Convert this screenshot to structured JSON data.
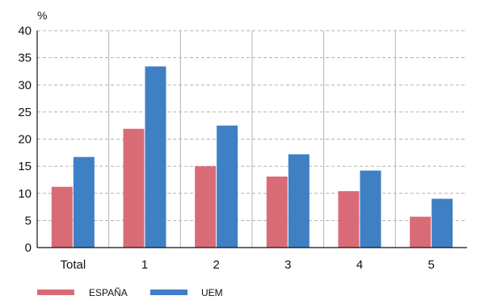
{
  "chart_data": {
    "type": "bar",
    "title": "",
    "xlabel": "",
    "ylabel": "",
    "y_unit": "%",
    "categories": [
      "Total",
      "1",
      "2",
      "3",
      "4",
      "5"
    ],
    "series": [
      {
        "name": "ESPAÑA",
        "values": [
          11.2,
          21.9,
          15.0,
          13.1,
          10.4,
          5.7
        ],
        "color": "#d96b77"
      },
      {
        "name": "UEM",
        "values": [
          16.7,
          33.4,
          22.5,
          17.2,
          14.2,
          9.0
        ],
        "color": "#3f7fc4"
      }
    ],
    "ylim": [
      0,
      40
    ],
    "yticks": [
      0,
      5,
      10,
      15,
      20,
      25,
      30,
      35,
      40
    ],
    "grid": "horizontal dashed",
    "legend": "bottom-left"
  }
}
